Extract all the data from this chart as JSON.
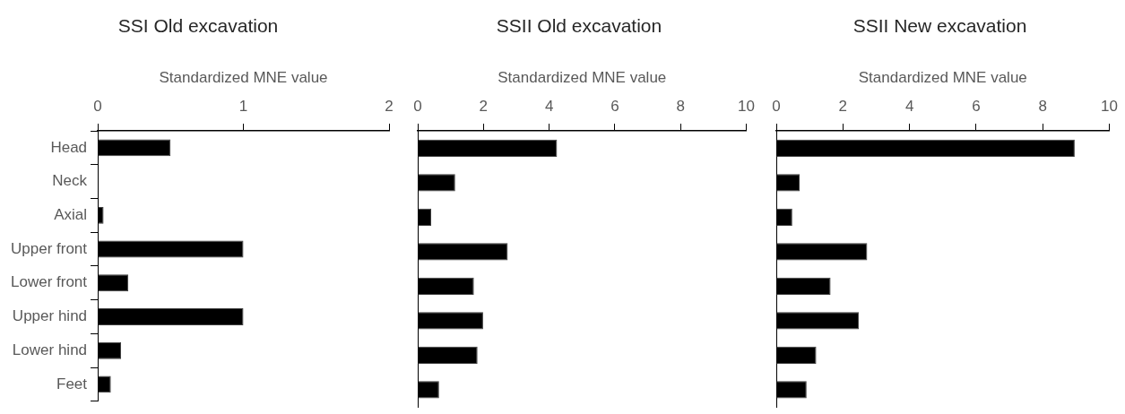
{
  "chart_data": [
    {
      "type": "bar",
      "orientation": "horizontal",
      "title": "SSI Old excavation",
      "xlabel": "Standardized MNE value",
      "categories": [
        "Head",
        "Neck",
        "Axial",
        "Upper front",
        "Lower front",
        "Upper hind",
        "Lower hind",
        "Feet"
      ],
      "values": [
        0.5,
        0,
        0.04,
        1,
        0.21,
        1,
        0.16,
        0.09
      ],
      "color": "#000000",
      "xlim": [
        0,
        2
      ],
      "xticks": [
        0,
        1,
        2
      ],
      "grid": false
    },
    {
      "type": "bar",
      "orientation": "horizontal",
      "title": "SSII Old excavation",
      "xlabel": "Standardized MNE value",
      "categories": [
        null,
        null,
        null,
        null,
        null,
        null,
        null,
        null
      ],
      "values": [
        4.24,
        1.14,
        0.41,
        2.74,
        1.71,
        1.99,
        1.82,
        0.65
      ],
      "color": "#000000",
      "xlim": [
        0,
        10
      ],
      "xticks": [
        0,
        2,
        4,
        6,
        8,
        10
      ],
      "grid": false,
      "tick_labels": "x"
    },
    {
      "type": "bar",
      "orientation": "horizontal",
      "title": "SSII New excavation",
      "xlabel": "Standardized MNE value",
      "categories": [
        null,
        null,
        null,
        null,
        null,
        null,
        null,
        null
      ],
      "values": [
        8.96,
        0.7,
        0.48,
        2.73,
        1.63,
        2.48,
        1.2,
        0.91
      ],
      "color": "#000000",
      "xlim": [
        0,
        10
      ],
      "xticks": [
        0,
        2,
        4,
        6,
        8,
        10
      ],
      "grid": false,
      "tick_labels": "x"
    }
  ]
}
